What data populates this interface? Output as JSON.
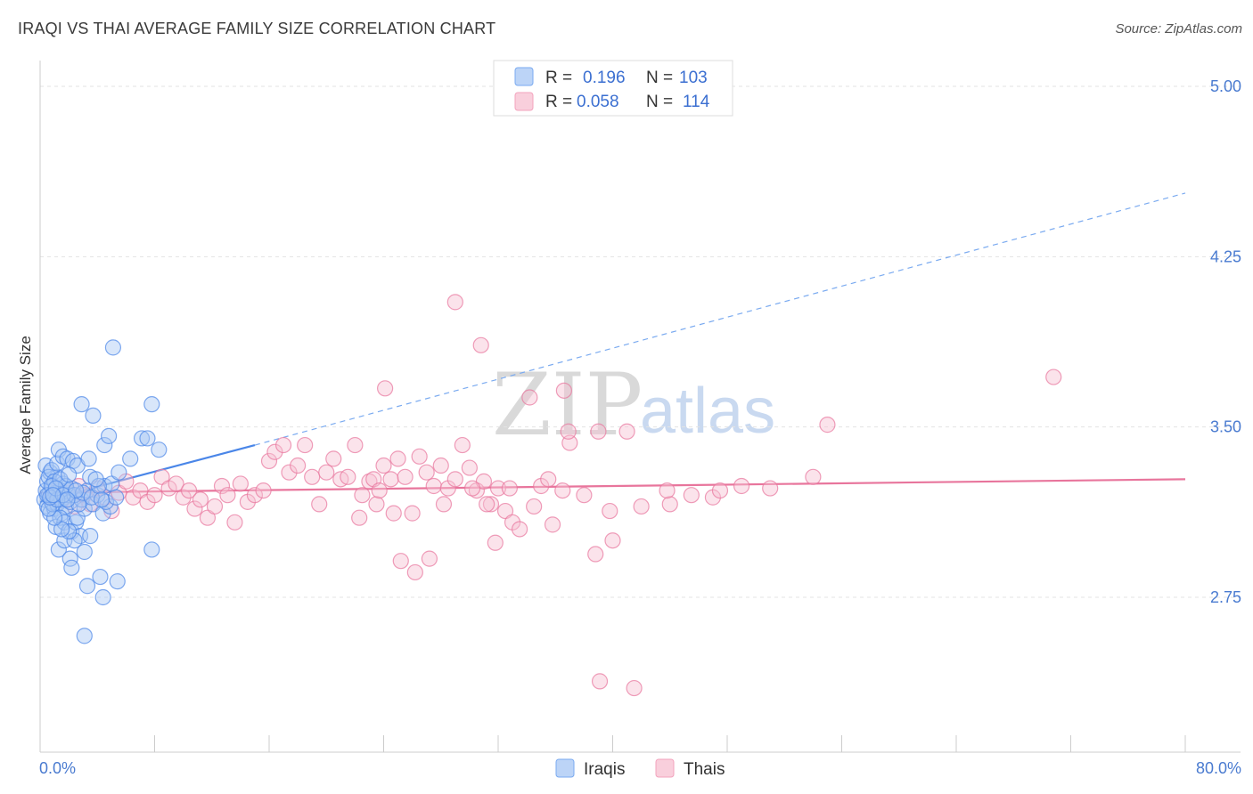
{
  "title": "IRAQI VS THAI AVERAGE FAMILY SIZE CORRELATION CHART",
  "source": "Source: ZipAtlas.com",
  "watermark": {
    "zip": "ZIP",
    "atlas": "atlas"
  },
  "legend_top": {
    "rows": [
      {
        "r_label": "R =",
        "r_value": "0.196",
        "n_label": "N =",
        "n_value": "103",
        "color": "#7aaaf0"
      },
      {
        "r_label": "R =",
        "r_value": "0.058",
        "n_label": "N =",
        "n_value": "114",
        "color": "#f3a3bd"
      }
    ]
  },
  "legend_bottom": {
    "items": [
      {
        "label": "Iraqis",
        "color": "#7aaaf0"
      },
      {
        "label": "Thais",
        "color": "#f3a3bd"
      }
    ]
  },
  "chart_data": {
    "type": "scatter",
    "title": "IRAQI VS THAI AVERAGE FAMILY SIZE CORRELATION CHART",
    "xlabel": "",
    "ylabel": "Average Family Size",
    "xlim": [
      0,
      80
    ],
    "ylim": [
      2.0,
      5.1
    ],
    "x_tick_labels": [
      "0.0%",
      "80.0%"
    ],
    "y_ticks": [
      2.75,
      3.5,
      4.25,
      5.0
    ],
    "y_tick_labels": [
      "2.75",
      "3.50",
      "4.25",
      "5.00"
    ],
    "grid": true,
    "legend_position": "top-center",
    "series": [
      {
        "name": "Iraqis",
        "color": "#4a86e8",
        "fill": "#a9c8f5",
        "trend": {
          "x0": 0,
          "y0": 3.17,
          "x1": 15,
          "y1": 3.42,
          "x_ext": 80,
          "y_ext": 4.53
        },
        "points": [
          [
            0.3,
            3.18
          ],
          [
            0.4,
            3.22
          ],
          [
            0.5,
            3.15
          ],
          [
            0.5,
            3.26
          ],
          [
            0.6,
            3.2
          ],
          [
            0.7,
            3.12
          ],
          [
            0.7,
            3.3
          ],
          [
            0.8,
            3.17
          ],
          [
            0.9,
            3.24
          ],
          [
            1.0,
            3.19
          ],
          [
            1.0,
            3.14
          ],
          [
            1.1,
            3.21
          ],
          [
            1.2,
            3.16
          ],
          [
            1.2,
            3.28
          ],
          [
            1.3,
            3.2
          ],
          [
            1.4,
            3.22
          ],
          [
            1.5,
            3.18
          ],
          [
            1.5,
            3.12
          ],
          [
            1.6,
            3.25
          ],
          [
            1.7,
            3.19
          ],
          [
            1.8,
            3.15
          ],
          [
            1.9,
            3.22
          ],
          [
            2.0,
            3.2
          ],
          [
            2.1,
            3.17
          ],
          [
            2.2,
            3.23
          ],
          [
            0.4,
            3.33
          ],
          [
            0.6,
            3.28
          ],
          [
            0.8,
            3.31
          ],
          [
            1.0,
            3.26
          ],
          [
            1.2,
            3.34
          ],
          [
            1.3,
            3.4
          ],
          [
            1.6,
            3.37
          ],
          [
            1.9,
            3.36
          ],
          [
            2.3,
            3.35
          ],
          [
            2.6,
            3.33
          ],
          [
            1.1,
            3.06
          ],
          [
            1.4,
            3.1
          ],
          [
            1.7,
            3.08
          ],
          [
            1.3,
            2.96
          ],
          [
            1.7,
            3.0
          ],
          [
            2.2,
            3.04
          ],
          [
            2.5,
            3.08
          ],
          [
            2.8,
            3.02
          ],
          [
            2.1,
            2.92
          ],
          [
            3.1,
            2.95
          ],
          [
            3.5,
            3.02
          ],
          [
            2.6,
            3.1
          ],
          [
            3.1,
            3.14
          ],
          [
            2.9,
            3.18
          ],
          [
            3.3,
            3.22
          ],
          [
            3.7,
            3.16
          ],
          [
            4.0,
            3.2
          ],
          [
            3.5,
            3.28
          ],
          [
            4.5,
            3.24
          ],
          [
            3.4,
            3.36
          ],
          [
            4.5,
            3.42
          ],
          [
            4.8,
            3.46
          ],
          [
            2.9,
            3.6
          ],
          [
            3.7,
            3.55
          ],
          [
            5.0,
            3.25
          ],
          [
            5.5,
            3.3
          ],
          [
            6.3,
            3.36
          ],
          [
            7.1,
            3.45
          ],
          [
            7.5,
            3.45
          ],
          [
            8.3,
            3.4
          ],
          [
            7.8,
            3.6
          ],
          [
            5.1,
            3.85
          ],
          [
            7.8,
            2.96
          ],
          [
            4.4,
            3.12
          ],
          [
            4.9,
            3.15
          ],
          [
            3.3,
            2.8
          ],
          [
            4.2,
            2.84
          ],
          [
            4.4,
            2.75
          ],
          [
            5.4,
            2.82
          ],
          [
            3.1,
            2.58
          ],
          [
            2.2,
            2.88
          ],
          [
            2.4,
            3.0
          ],
          [
            2.0,
            3.04
          ],
          [
            1.5,
            3.05
          ],
          [
            1.0,
            3.1
          ],
          [
            0.9,
            3.16
          ],
          [
            0.6,
            3.14
          ],
          [
            0.5,
            3.2
          ],
          [
            0.8,
            3.24
          ],
          [
            1.2,
            3.18
          ],
          [
            1.8,
            3.24
          ],
          [
            2.4,
            3.2
          ],
          [
            2.7,
            3.16
          ],
          [
            3.0,
            3.21
          ],
          [
            3.6,
            3.19
          ],
          [
            4.1,
            3.24
          ],
          [
            4.6,
            3.17
          ],
          [
            5.3,
            3.19
          ],
          [
            1.4,
            3.27
          ],
          [
            2.0,
            3.29
          ],
          [
            0.7,
            3.19
          ],
          [
            1.1,
            3.23
          ],
          [
            1.6,
            3.2
          ],
          [
            2.5,
            3.22
          ],
          [
            3.9,
            3.27
          ],
          [
            4.3,
            3.18
          ],
          [
            0.9,
            3.2
          ],
          [
            1.9,
            3.18
          ]
        ]
      },
      {
        "name": "Thais",
        "color": "#e8759c",
        "fill": "#f7c2d3",
        "trend": {
          "x0": 0,
          "y0": 3.21,
          "x1": 80,
          "y1": 3.27
        },
        "points": [
          [
            0.8,
            3.19
          ],
          [
            1.2,
            3.22
          ],
          [
            1.6,
            3.18
          ],
          [
            2.0,
            3.21
          ],
          [
            2.4,
            3.15
          ],
          [
            2.7,
            3.24
          ],
          [
            3.1,
            3.2
          ],
          [
            3.5,
            3.16
          ],
          [
            4.0,
            3.23
          ],
          [
            4.5,
            3.19
          ],
          [
            5.0,
            3.13
          ],
          [
            5.5,
            3.21
          ],
          [
            6.0,
            3.26
          ],
          [
            6.5,
            3.19
          ],
          [
            7.0,
            3.22
          ],
          [
            7.5,
            3.17
          ],
          [
            8.0,
            3.2
          ],
          [
            8.5,
            3.28
          ],
          [
            9.0,
            3.23
          ],
          [
            9.5,
            3.25
          ],
          [
            10.0,
            3.19
          ],
          [
            10.4,
            3.22
          ],
          [
            10.8,
            3.14
          ],
          [
            11.2,
            3.18
          ],
          [
            11.7,
            3.1
          ],
          [
            12.2,
            3.15
          ],
          [
            12.7,
            3.24
          ],
          [
            13.1,
            3.2
          ],
          [
            13.6,
            3.08
          ],
          [
            14.0,
            3.25
          ],
          [
            14.5,
            3.17
          ],
          [
            15.0,
            3.2
          ],
          [
            15.6,
            3.22
          ],
          [
            16.0,
            3.35
          ],
          [
            16.4,
            3.39
          ],
          [
            17.0,
            3.42
          ],
          [
            17.4,
            3.3
          ],
          [
            18.0,
            3.33
          ],
          [
            18.5,
            3.42
          ],
          [
            19.0,
            3.28
          ],
          [
            19.5,
            3.16
          ],
          [
            20.0,
            3.3
          ],
          [
            20.5,
            3.36
          ],
          [
            21.0,
            3.27
          ],
          [
            21.5,
            3.28
          ],
          [
            22.0,
            3.42
          ],
          [
            22.5,
            3.2
          ],
          [
            23.0,
            3.26
          ],
          [
            23.5,
            3.16
          ],
          [
            24.0,
            3.33
          ],
          [
            24.5,
            3.27
          ],
          [
            25.0,
            3.36
          ],
          [
            25.5,
            3.28
          ],
          [
            26.0,
            3.12
          ],
          [
            26.5,
            3.37
          ],
          [
            27.0,
            3.3
          ],
          [
            27.5,
            3.24
          ],
          [
            28.0,
            3.33
          ],
          [
            28.5,
            3.23
          ],
          [
            29.0,
            3.27
          ],
          [
            29.5,
            3.42
          ],
          [
            30.0,
            3.32
          ],
          [
            30.5,
            3.22
          ],
          [
            31.0,
            3.26
          ],
          [
            31.5,
            3.16
          ],
          [
            32.0,
            3.23
          ],
          [
            32.5,
            3.13
          ],
          [
            33.0,
            3.08
          ],
          [
            33.5,
            3.05
          ],
          [
            34.5,
            3.15
          ],
          [
            35.0,
            3.24
          ],
          [
            35.5,
            3.27
          ],
          [
            36.5,
            3.22
          ],
          [
            37.0,
            3.43
          ],
          [
            38.0,
            3.2
          ],
          [
            39.0,
            3.48
          ],
          [
            40.0,
            3.0
          ],
          [
            42.0,
            3.15
          ],
          [
            44.0,
            3.16
          ],
          [
            45.5,
            3.2
          ],
          [
            47.0,
            3.19
          ],
          [
            47.5,
            3.22
          ],
          [
            49.0,
            3.24
          ],
          [
            51.0,
            3.23
          ],
          [
            54.0,
            3.28
          ],
          [
            29.0,
            4.05
          ],
          [
            30.8,
            3.86
          ],
          [
            24.1,
            3.67
          ],
          [
            34.2,
            3.63
          ],
          [
            36.6,
            3.66
          ],
          [
            36.9,
            3.48
          ],
          [
            41.0,
            3.48
          ],
          [
            55.0,
            3.51
          ],
          [
            70.8,
            3.72
          ],
          [
            39.1,
            2.38
          ],
          [
            41.5,
            2.35
          ],
          [
            22.3,
            3.1
          ],
          [
            23.3,
            3.27
          ],
          [
            23.7,
            3.22
          ],
          [
            24.7,
            3.12
          ],
          [
            25.2,
            2.91
          ],
          [
            26.2,
            2.86
          ],
          [
            27.2,
            2.92
          ],
          [
            28.2,
            3.16
          ],
          [
            30.2,
            3.23
          ],
          [
            31.2,
            3.16
          ],
          [
            31.8,
            2.99
          ],
          [
            32.8,
            3.23
          ],
          [
            35.8,
            3.07
          ],
          [
            38.8,
            2.94
          ],
          [
            39.8,
            3.13
          ],
          [
            43.8,
            3.22
          ]
        ]
      }
    ]
  }
}
